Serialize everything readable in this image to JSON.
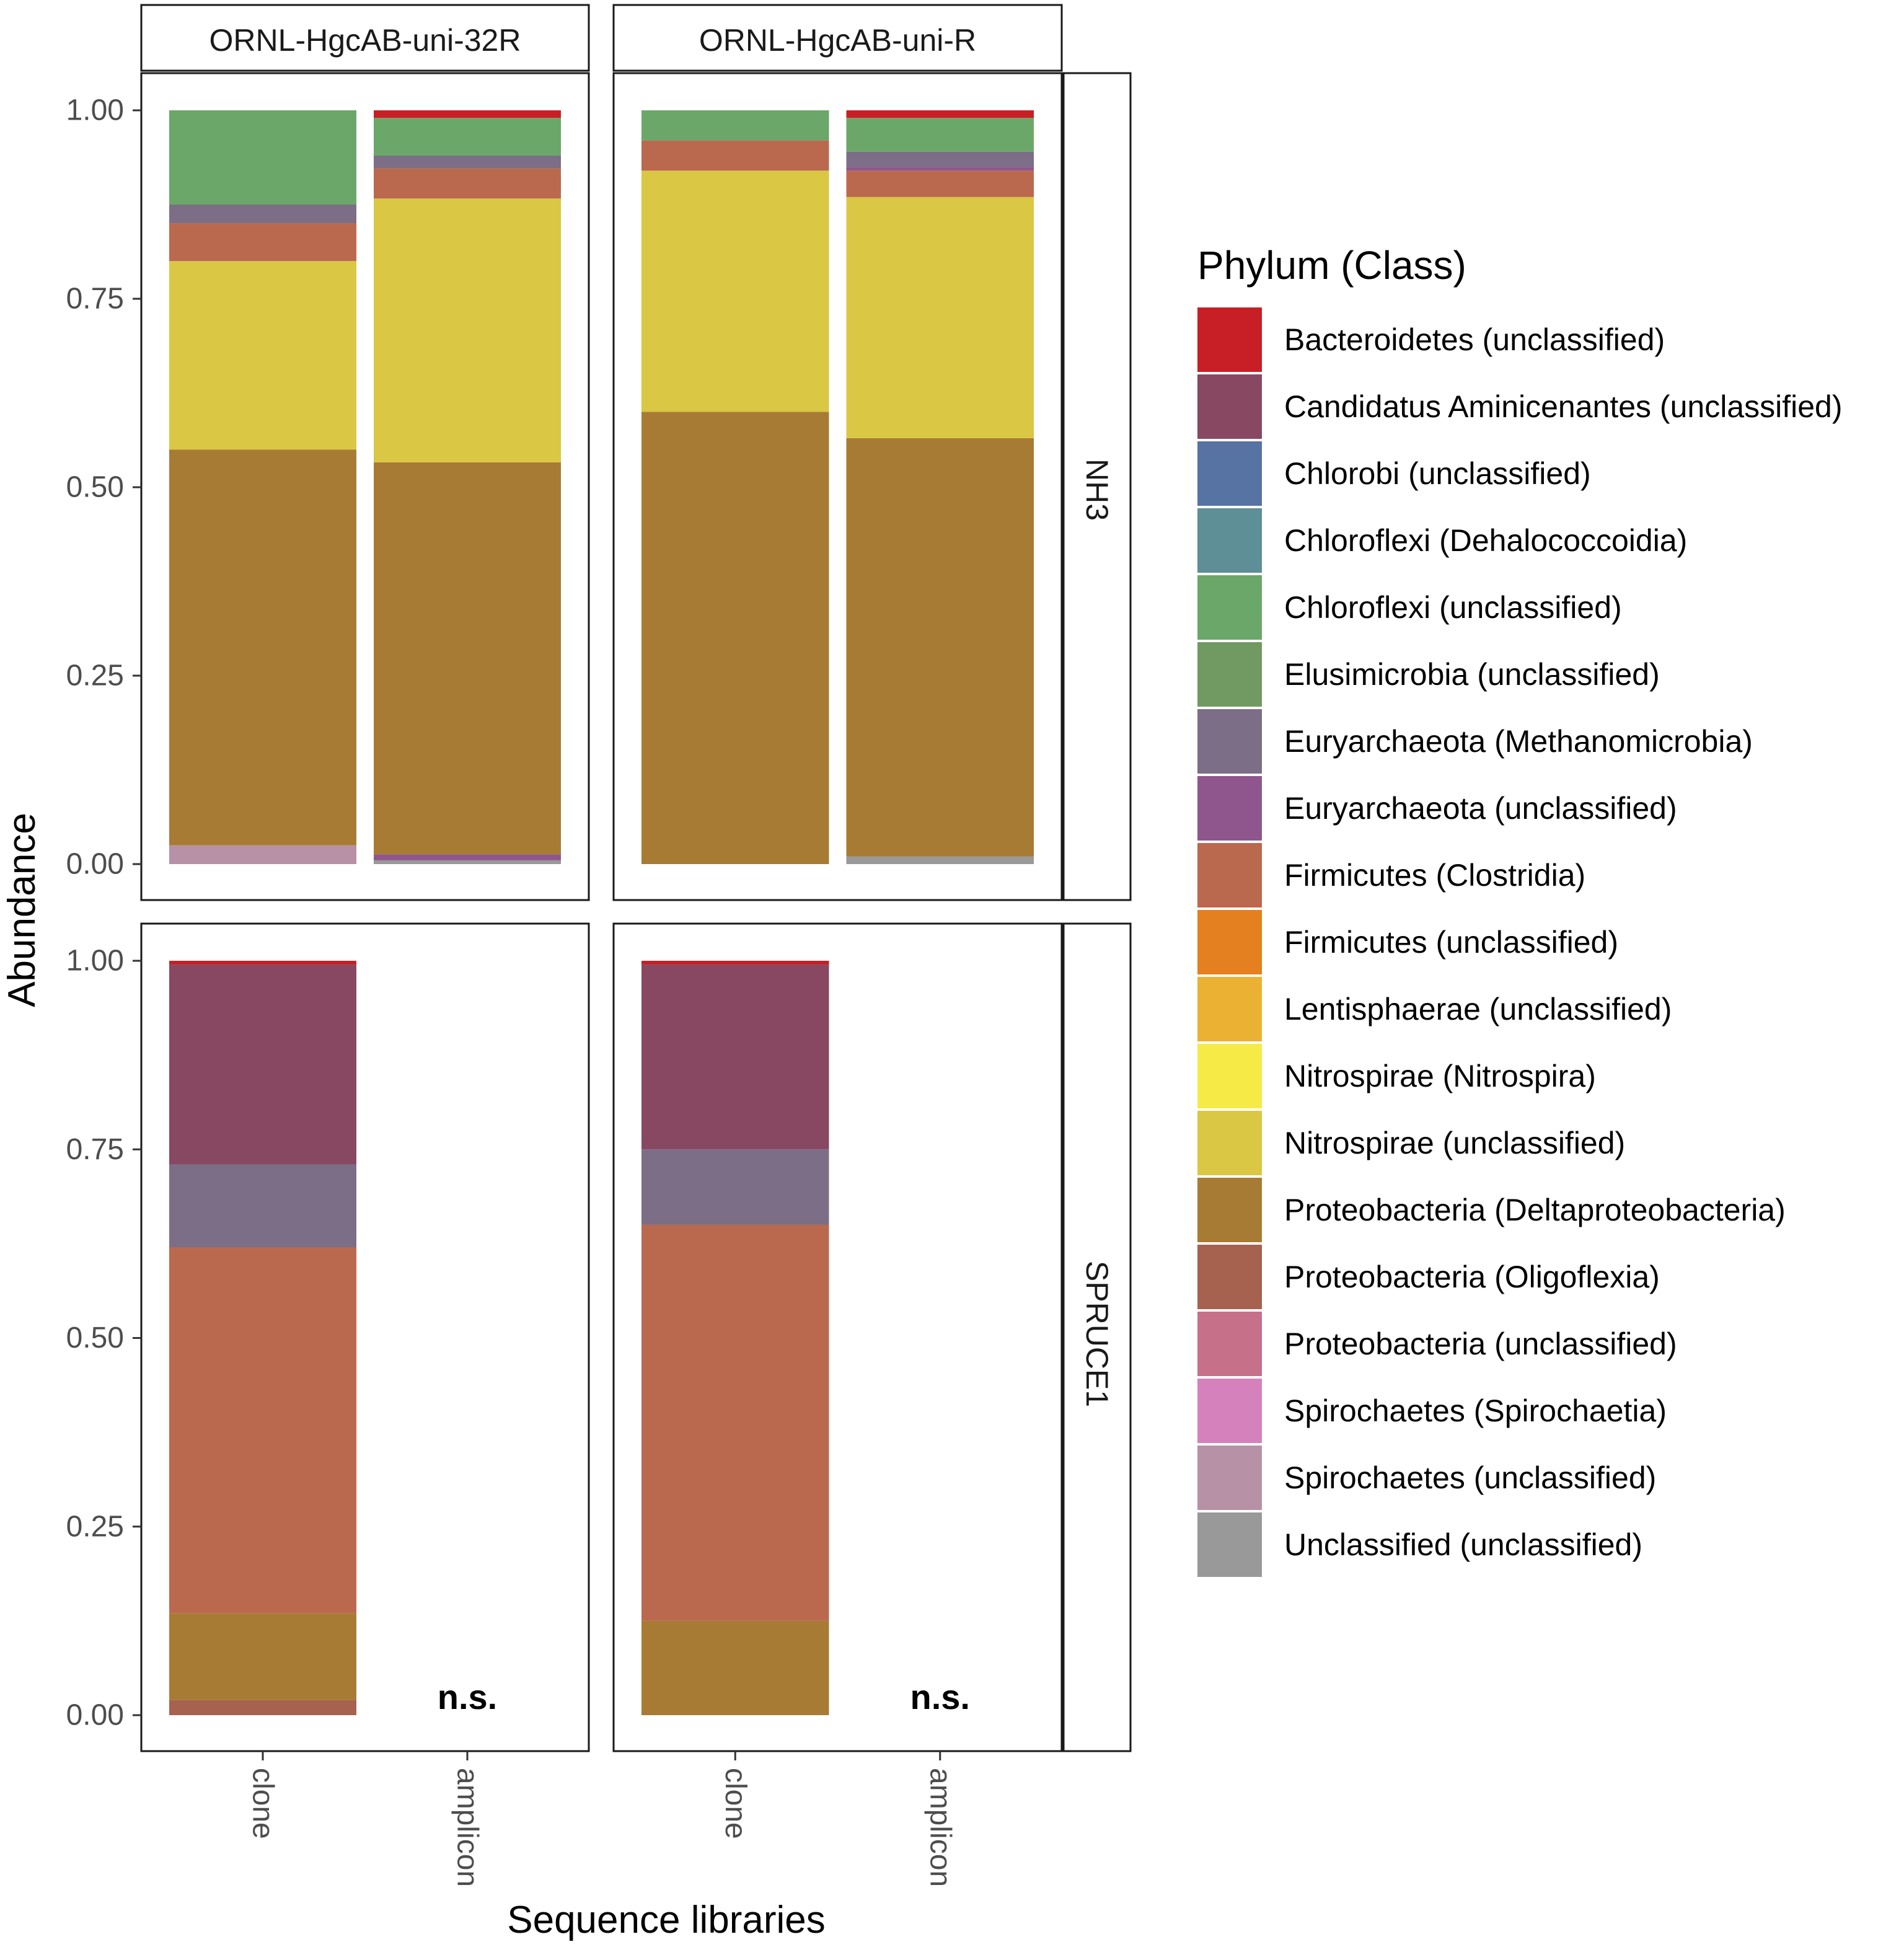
{
  "chart_data": {
    "type": "bar",
    "stacked": true,
    "facet_columns": [
      "ORNL-HgcAB-uni-32R",
      "ORNL-HgcAB-uni-R"
    ],
    "facet_rows": [
      "NH3",
      "SPRUCE1"
    ],
    "categories": [
      "clone",
      "amplicon"
    ],
    "xlabel": "Sequence libraries",
    "ylabel": "Abundance",
    "ylim": [
      0,
      1
    ],
    "y_ticks": [
      "0.00",
      "0.25",
      "0.50",
      "0.75",
      "1.00"
    ],
    "legend_title": "Phylum (Class)",
    "legend_position": "right",
    "not_sequenced_label": "n.s.",
    "legend": [
      {
        "name": "Bacteroidetes (unclassified)",
        "color": "#C81F26"
      },
      {
        "name": "Candidatus Aminicenantes (unclassified)",
        "color": "#884862"
      },
      {
        "name": "Chlorobi (unclassified)",
        "color": "#5673A4"
      },
      {
        "name": "Chloroflexi (Dehalococcoidia)",
        "color": "#5E8E96"
      },
      {
        "name": "Chloroflexi (unclassified)",
        "color": "#6BA768"
      },
      {
        "name": "Elusimicrobia (unclassified)",
        "color": "#719962"
      },
      {
        "name": "Euryarchaeota (Methanomicrobia)",
        "color": "#7B6E86"
      },
      {
        "name": "Euryarchaeota (unclassified)",
        "color": "#8E568D"
      },
      {
        "name": "Firmicutes (Clostridia)",
        "color": "#BA694E"
      },
      {
        "name": "Firmicutes (unclassified)",
        "color": "#E4801F"
      },
      {
        "name": "Lentisphaerae (unclassified)",
        "color": "#EBB133"
      },
      {
        "name": "Nitrospirae (Nitrospira)",
        "color": "#F6EB46"
      },
      {
        "name": "Nitrospirae (unclassified)",
        "color": "#DAC744"
      },
      {
        "name": "Proteobacteria (Deltaproteobacteria)",
        "color": "#A87B34"
      },
      {
        "name": "Proteobacteria (Oligoflexia)",
        "color": "#A7614F"
      },
      {
        "name": "Proteobacteria (unclassified)",
        "color": "#C6708A"
      },
      {
        "name": "Spirochaetes (Spirochaetia)",
        "color": "#D582BC"
      },
      {
        "name": "Spirochaetes (unclassified)",
        "color": "#B791A5"
      },
      {
        "name": "Unclassified (unclassified)",
        "color": "#999999"
      }
    ],
    "bars": [
      {
        "row": "NH3",
        "column": "ORNL-HgcAB-uni-32R",
        "category": "clone",
        "segments": [
          {
            "taxon": "Spirochaetes (unclassified)",
            "value": 0.025
          },
          {
            "taxon": "Proteobacteria (Deltaproteobacteria)",
            "value": 0.525
          },
          {
            "taxon": "Nitrospirae (unclassified)",
            "value": 0.25
          },
          {
            "taxon": "Firmicutes (Clostridia)",
            "value": 0.05
          },
          {
            "taxon": "Euryarchaeota (Methanomicrobia)",
            "value": 0.025
          },
          {
            "taxon": "Chloroflexi (unclassified)",
            "value": 0.125
          }
        ]
      },
      {
        "row": "NH3",
        "column": "ORNL-HgcAB-uni-32R",
        "category": "amplicon",
        "segments": [
          {
            "taxon": "Unclassified (unclassified)",
            "value": 0.005
          },
          {
            "taxon": "Euryarchaeota (unclassified)",
            "value": 0.008
          },
          {
            "taxon": "Proteobacteria (Deltaproteobacteria)",
            "value": 0.52
          },
          {
            "taxon": "Nitrospirae (unclassified)",
            "value": 0.35
          },
          {
            "taxon": "Firmicutes (Clostridia)",
            "value": 0.04
          },
          {
            "taxon": "Euryarchaeota (Methanomicrobia)",
            "value": 0.017
          },
          {
            "taxon": "Chloroflexi (unclassified)",
            "value": 0.05
          },
          {
            "taxon": "Bacteroidetes (unclassified)",
            "value": 0.01
          }
        ]
      },
      {
        "row": "NH3",
        "column": "ORNL-HgcAB-uni-R",
        "category": "clone",
        "segments": [
          {
            "taxon": "Proteobacteria (Deltaproteobacteria)",
            "value": 0.6
          },
          {
            "taxon": "Nitrospirae (unclassified)",
            "value": 0.32
          },
          {
            "taxon": "Firmicutes (Clostridia)",
            "value": 0.04
          },
          {
            "taxon": "Chloroflexi (unclassified)",
            "value": 0.04
          }
        ]
      },
      {
        "row": "NH3",
        "column": "ORNL-HgcAB-uni-R",
        "category": "amplicon",
        "segments": [
          {
            "taxon": "Unclassified (unclassified)",
            "value": 0.01
          },
          {
            "taxon": "Proteobacteria (Deltaproteobacteria)",
            "value": 0.555
          },
          {
            "taxon": "Nitrospirae (unclassified)",
            "value": 0.32
          },
          {
            "taxon": "Firmicutes (Clostridia)",
            "value": 0.035
          },
          {
            "taxon": "Euryarchaeota (unclassified)",
            "value": 0.005
          },
          {
            "taxon": "Euryarchaeota (Methanomicrobia)",
            "value": 0.02
          },
          {
            "taxon": "Chloroflexi (unclassified)",
            "value": 0.045
          },
          {
            "taxon": "Bacteroidetes (unclassified)",
            "value": 0.01
          }
        ]
      },
      {
        "row": "SPRUCE1",
        "column": "ORNL-HgcAB-uni-32R",
        "category": "clone",
        "segments": [
          {
            "taxon": "Proteobacteria (Oligoflexia)",
            "value": 0.02
          },
          {
            "taxon": "Proteobacteria (Deltaproteobacteria)",
            "value": 0.115
          },
          {
            "taxon": "Firmicutes (Clostridia)",
            "value": 0.485
          },
          {
            "taxon": "Euryarchaeota (Methanomicrobia)",
            "value": 0.11
          },
          {
            "taxon": "Candidatus Aminicenantes (unclassified)",
            "value": 0.265
          },
          {
            "taxon": "Bacteroidetes (unclassified)",
            "value": 0.005
          }
        ]
      },
      {
        "row": "SPRUCE1",
        "column": "ORNL-HgcAB-uni-R",
        "category": "clone",
        "segments": [
          {
            "taxon": "Proteobacteria (Deltaproteobacteria)",
            "value": 0.125
          },
          {
            "taxon": "Firmicutes (Clostridia)",
            "value": 0.525
          },
          {
            "taxon": "Euryarchaeota (Methanomicrobia)",
            "value": 0.1
          },
          {
            "taxon": "Candidatus Aminicenantes (unclassified)",
            "value": 0.245
          },
          {
            "taxon": "Bacteroidetes (unclassified)",
            "value": 0.005
          }
        ]
      },
      {
        "row": "SPRUCE1",
        "column": "ORNL-HgcAB-uni-32R",
        "category": "amplicon",
        "not_sequenced": true,
        "segments": []
      },
      {
        "row": "SPRUCE1",
        "column": "ORNL-HgcAB-uni-R",
        "category": "amplicon",
        "not_sequenced": true,
        "segments": []
      }
    ]
  }
}
